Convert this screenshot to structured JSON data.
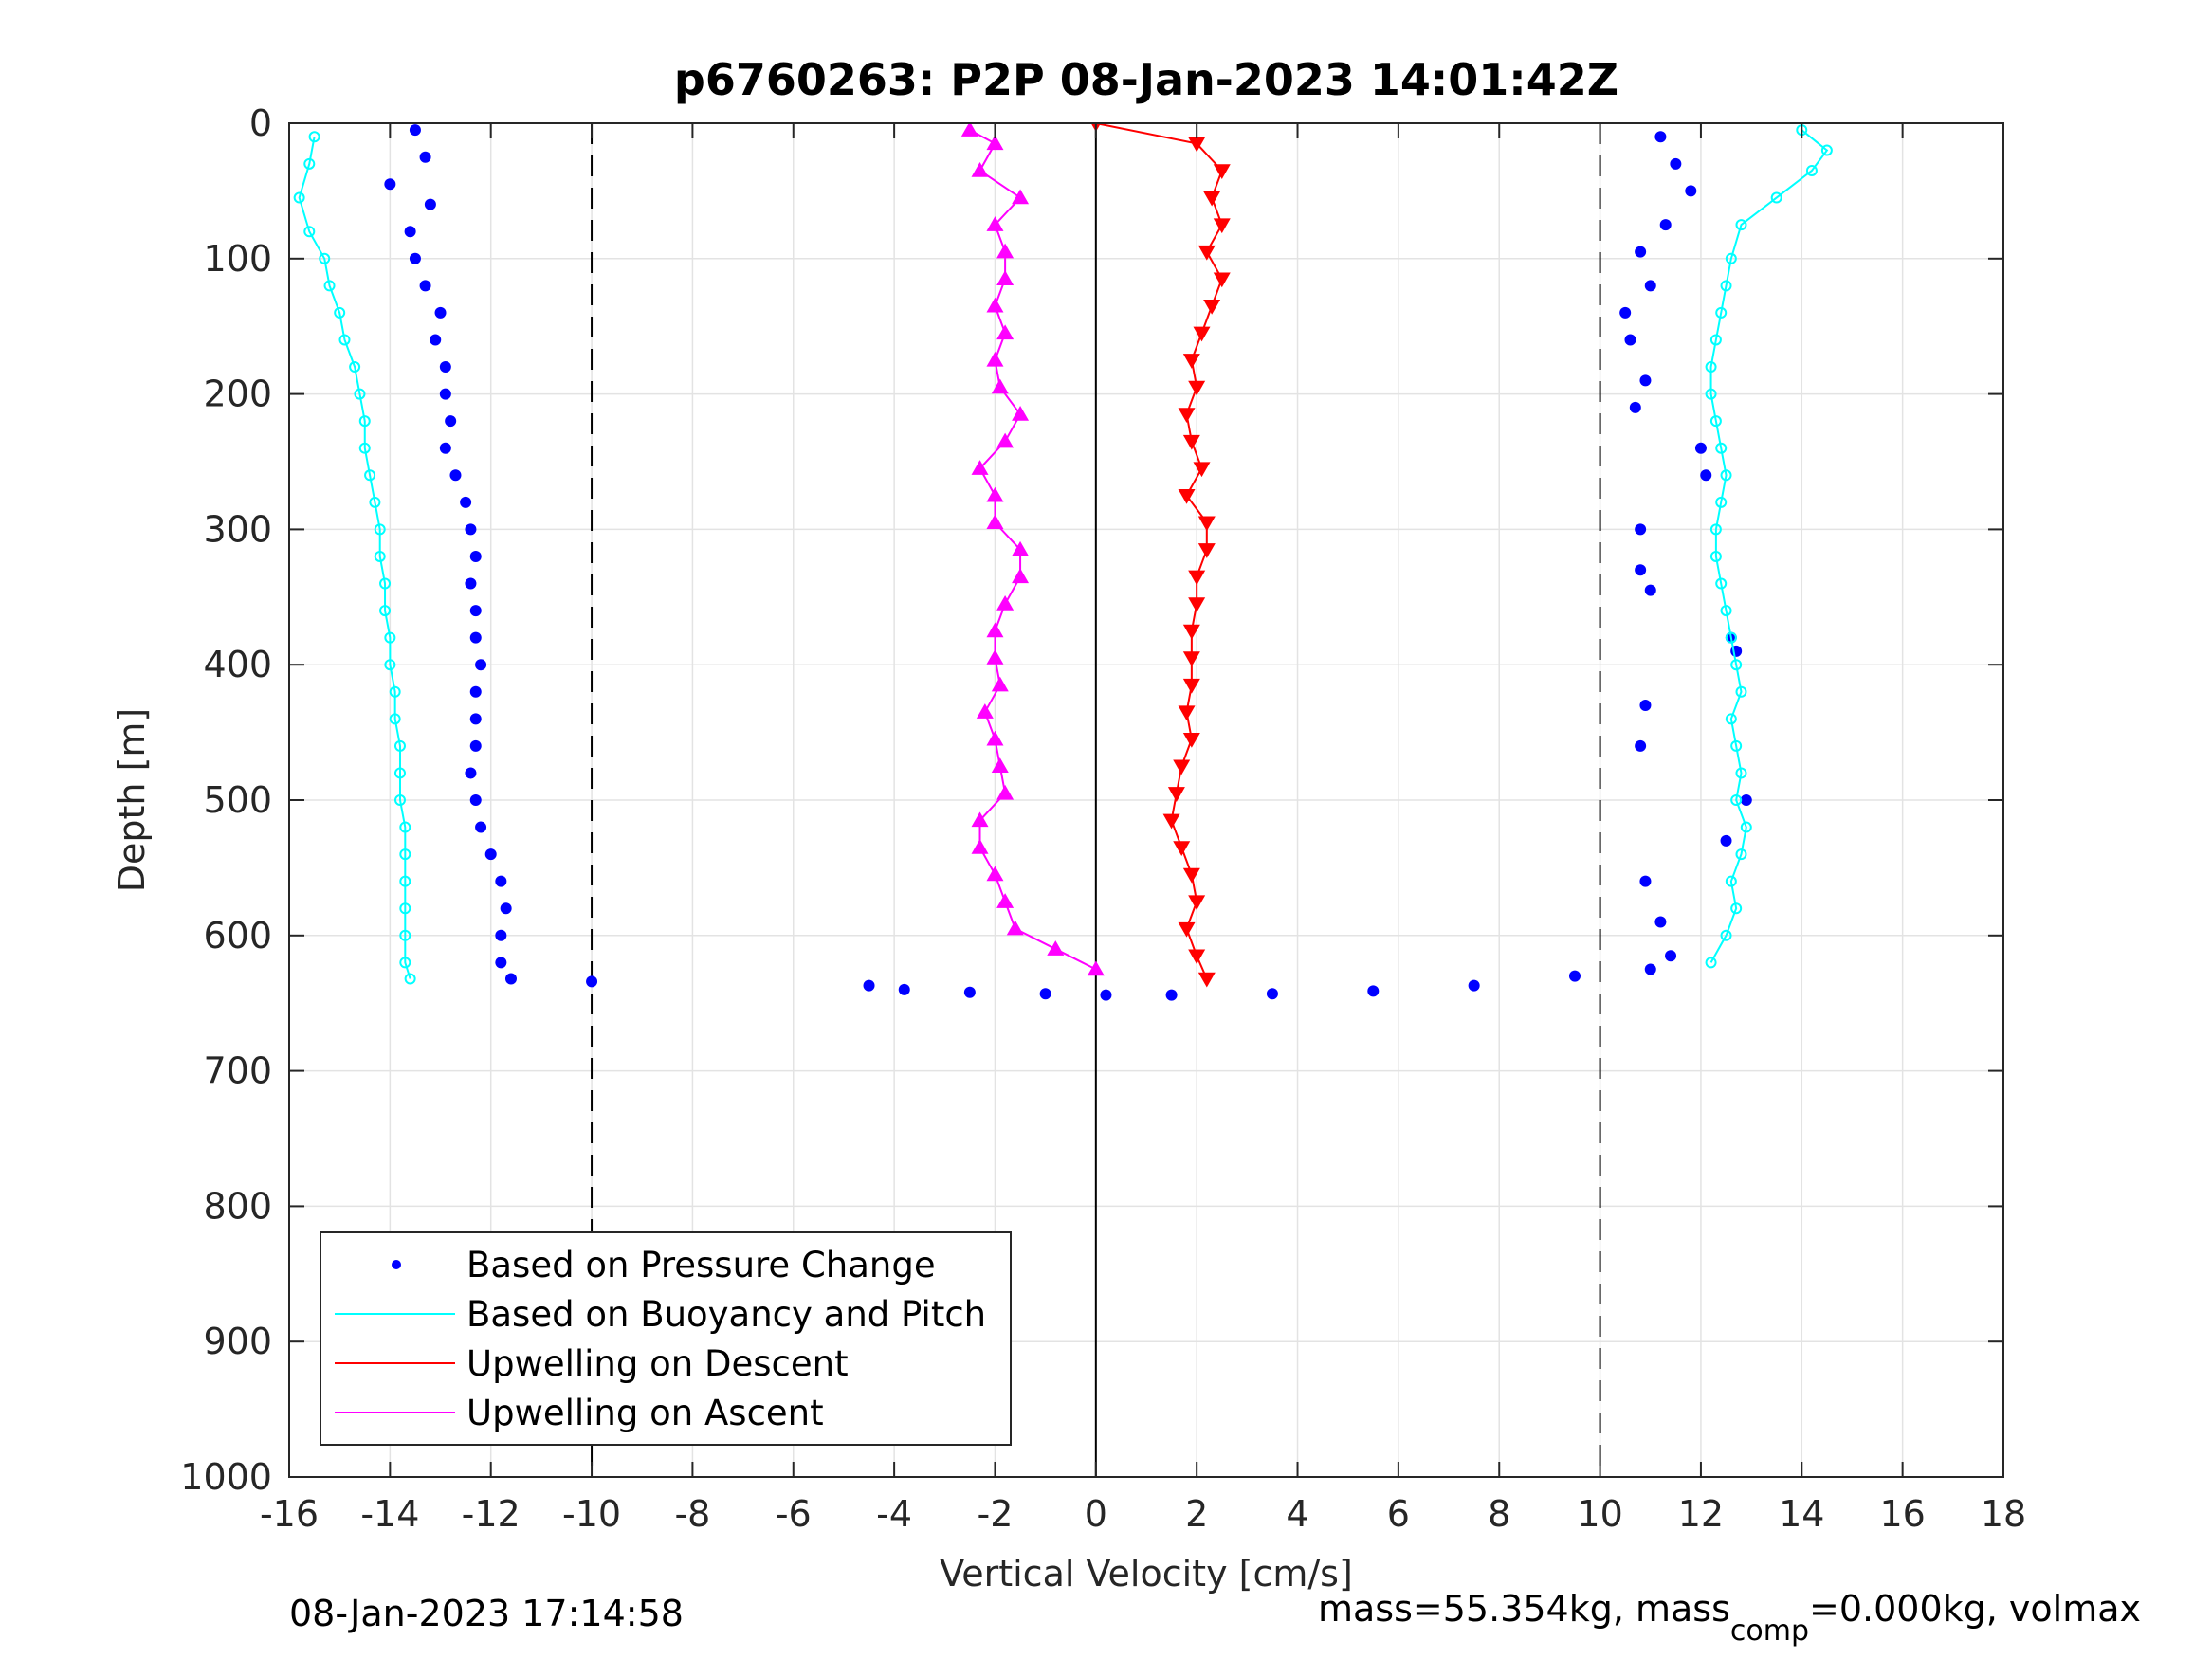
{
  "chart_data": {
    "type": "scatter",
    "title": "p6760263: P2P 08-Jan-2023 14:01:42Z",
    "xlabel": "Vertical Velocity [cm/s]",
    "ylabel": "Depth [m]",
    "xlim": [
      -16,
      18
    ],
    "ylim": [
      0,
      1000
    ],
    "y_reversed": true,
    "grid": true,
    "xticks": [
      "-16",
      "-14",
      "-12",
      "-10",
      "-8",
      "-6",
      "-4",
      "-2",
      "0",
      "2",
      "4",
      "6",
      "8",
      "10",
      "12",
      "14",
      "16",
      "18"
    ],
    "yticks": [
      "0",
      "100",
      "200",
      "300",
      "400",
      "500",
      "600",
      "700",
      "800",
      "900",
      "1000"
    ],
    "reference_lines": [
      {
        "x": -10,
        "style": "dashed"
      },
      {
        "x": 0,
        "style": "solid"
      },
      {
        "x": 10,
        "style": "dashed"
      }
    ],
    "legend_position": "bottom-left",
    "legend": [
      {
        "label": "Based on Pressure Change",
        "color": "#0000ff",
        "marker": "dot"
      },
      {
        "label": "Based on Buoyancy and Pitch",
        "color": "#00ffff",
        "marker": "line"
      },
      {
        "label": "Upwelling on Descent",
        "color": "#ff0000",
        "marker": "line"
      },
      {
        "label": "Upwelling on Ascent",
        "color": "#ff00ff",
        "marker": "line"
      }
    ],
    "series": [
      {
        "name": "Based on Pressure Change",
        "color": "#0000ff",
        "profile": "descent",
        "points": [
          [
            -13.5,
            5
          ],
          [
            -13.3,
            25
          ],
          [
            -14.0,
            45
          ],
          [
            -13.2,
            60
          ],
          [
            -13.6,
            80
          ],
          [
            -13.5,
            100
          ],
          [
            -13.3,
            120
          ],
          [
            -13.0,
            140
          ],
          [
            -13.1,
            160
          ],
          [
            -12.9,
            180
          ],
          [
            -12.9,
            200
          ],
          [
            -12.8,
            220
          ],
          [
            -12.9,
            240
          ],
          [
            -12.7,
            260
          ],
          [
            -12.5,
            280
          ],
          [
            -12.4,
            300
          ],
          [
            -12.3,
            320
          ],
          [
            -12.4,
            340
          ],
          [
            -12.3,
            360
          ],
          [
            -12.3,
            380
          ],
          [
            -12.2,
            400
          ],
          [
            -12.3,
            420
          ],
          [
            -12.3,
            440
          ],
          [
            -12.3,
            460
          ],
          [
            -12.4,
            480
          ],
          [
            -12.3,
            500
          ],
          [
            -12.2,
            520
          ],
          [
            -12.0,
            540
          ],
          [
            -11.8,
            560
          ],
          [
            -11.7,
            580
          ],
          [
            -11.8,
            600
          ],
          [
            -11.8,
            620
          ],
          [
            -11.6,
            632
          ]
        ]
      },
      {
        "name": "Based on Pressure Change",
        "color": "#0000ff",
        "profile": "ascent",
        "points": [
          [
            11.2,
            10
          ],
          [
            11.5,
            30
          ],
          [
            11.8,
            50
          ],
          [
            11.3,
            75
          ],
          [
            10.8,
            95
          ],
          [
            11.0,
            120
          ],
          [
            10.5,
            140
          ],
          [
            10.6,
            160
          ],
          [
            10.9,
            190
          ],
          [
            10.7,
            210
          ],
          [
            12.0,
            240
          ],
          [
            12.1,
            260
          ],
          [
            10.8,
            300
          ],
          [
            10.8,
            330
          ],
          [
            11.0,
            345
          ],
          [
            12.6,
            380
          ],
          [
            12.7,
            390
          ],
          [
            10.9,
            430
          ],
          [
            10.8,
            460
          ],
          [
            12.9,
            500
          ],
          [
            12.5,
            530
          ],
          [
            10.9,
            560
          ],
          [
            11.2,
            590
          ],
          [
            11.4,
            615
          ],
          [
            11.0,
            625
          ]
        ]
      },
      {
        "name": "Based on Pressure Change",
        "color": "#0000ff",
        "profile": "bottom",
        "points": [
          [
            9.5,
            630
          ],
          [
            7.5,
            637
          ],
          [
            5.5,
            641
          ],
          [
            3.5,
            643
          ],
          [
            1.5,
            644
          ],
          [
            0.2,
            644
          ],
          [
            -1.0,
            643
          ],
          [
            -2.5,
            642
          ],
          [
            -3.8,
            640
          ],
          [
            -4.5,
            637
          ],
          [
            -10.0,
            634
          ]
        ]
      },
      {
        "name": "Based on Buoyancy and Pitch",
        "color": "#00ffff",
        "profile": "descent",
        "points": [
          [
            -15.5,
            10
          ],
          [
            -15.6,
            30
          ],
          [
            -15.8,
            55
          ],
          [
            -15.6,
            80
          ],
          [
            -15.3,
            100
          ],
          [
            -15.2,
            120
          ],
          [
            -15.0,
            140
          ],
          [
            -14.9,
            160
          ],
          [
            -14.7,
            180
          ],
          [
            -14.6,
            200
          ],
          [
            -14.5,
            220
          ],
          [
            -14.5,
            240
          ],
          [
            -14.4,
            260
          ],
          [
            -14.3,
            280
          ],
          [
            -14.2,
            300
          ],
          [
            -14.2,
            320
          ],
          [
            -14.1,
            340
          ],
          [
            -14.1,
            360
          ],
          [
            -14.0,
            380
          ],
          [
            -14.0,
            400
          ],
          [
            -13.9,
            420
          ],
          [
            -13.9,
            440
          ],
          [
            -13.8,
            460
          ],
          [
            -13.8,
            480
          ],
          [
            -13.8,
            500
          ],
          [
            -13.7,
            520
          ],
          [
            -13.7,
            540
          ],
          [
            -13.7,
            560
          ],
          [
            -13.7,
            580
          ],
          [
            -13.7,
            600
          ],
          [
            -13.7,
            620
          ],
          [
            -13.6,
            632
          ]
        ]
      },
      {
        "name": "Based on Buoyancy and Pitch",
        "color": "#00ffff",
        "profile": "ascent",
        "points": [
          [
            14.0,
            5
          ],
          [
            14.5,
            20
          ],
          [
            14.2,
            35
          ],
          [
            13.5,
            55
          ],
          [
            12.8,
            75
          ],
          [
            12.6,
            100
          ],
          [
            12.5,
            120
          ],
          [
            12.4,
            140
          ],
          [
            12.3,
            160
          ],
          [
            12.2,
            180
          ],
          [
            12.2,
            200
          ],
          [
            12.3,
            220
          ],
          [
            12.4,
            240
          ],
          [
            12.5,
            260
          ],
          [
            12.4,
            280
          ],
          [
            12.3,
            300
          ],
          [
            12.3,
            320
          ],
          [
            12.4,
            340
          ],
          [
            12.5,
            360
          ],
          [
            12.6,
            380
          ],
          [
            12.7,
            400
          ],
          [
            12.8,
            420
          ],
          [
            12.6,
            440
          ],
          [
            12.7,
            460
          ],
          [
            12.8,
            480
          ],
          [
            12.7,
            500
          ],
          [
            12.9,
            520
          ],
          [
            12.8,
            540
          ],
          [
            12.6,
            560
          ],
          [
            12.7,
            580
          ],
          [
            12.5,
            600
          ],
          [
            12.2,
            620
          ]
        ]
      },
      {
        "name": "Upwelling on Descent",
        "color": "#ff0000",
        "points": [
          [
            0.0,
            0
          ],
          [
            2.0,
            15
          ],
          [
            2.5,
            35
          ],
          [
            2.3,
            55
          ],
          [
            2.5,
            75
          ],
          [
            2.2,
            95
          ],
          [
            2.5,
            115
          ],
          [
            2.3,
            135
          ],
          [
            2.1,
            155
          ],
          [
            1.9,
            175
          ],
          [
            2.0,
            195
          ],
          [
            1.8,
            215
          ],
          [
            1.9,
            235
          ],
          [
            2.1,
            255
          ],
          [
            1.8,
            275
          ],
          [
            2.2,
            295
          ],
          [
            2.2,
            315
          ],
          [
            2.0,
            335
          ],
          [
            2.0,
            355
          ],
          [
            1.9,
            375
          ],
          [
            1.9,
            395
          ],
          [
            1.9,
            415
          ],
          [
            1.8,
            435
          ],
          [
            1.9,
            455
          ],
          [
            1.7,
            475
          ],
          [
            1.6,
            495
          ],
          [
            1.5,
            515
          ],
          [
            1.7,
            535
          ],
          [
            1.9,
            555
          ],
          [
            2.0,
            575
          ],
          [
            1.8,
            595
          ],
          [
            2.0,
            615
          ],
          [
            2.2,
            632
          ]
        ]
      },
      {
        "name": "Upwelling on Ascent",
        "color": "#ff00ff",
        "points": [
          [
            -2.5,
            5
          ],
          [
            -2.0,
            15
          ],
          [
            -2.3,
            35
          ],
          [
            -1.5,
            55
          ],
          [
            -2.0,
            75
          ],
          [
            -1.8,
            95
          ],
          [
            -1.8,
            115
          ],
          [
            -2.0,
            135
          ],
          [
            -1.8,
            155
          ],
          [
            -2.0,
            175
          ],
          [
            -1.9,
            195
          ],
          [
            -1.5,
            215
          ],
          [
            -1.8,
            235
          ],
          [
            -2.3,
            255
          ],
          [
            -2.0,
            275
          ],
          [
            -2.0,
            295
          ],
          [
            -1.5,
            315
          ],
          [
            -1.5,
            335
          ],
          [
            -1.8,
            355
          ],
          [
            -2.0,
            375
          ],
          [
            -2.0,
            395
          ],
          [
            -1.9,
            415
          ],
          [
            -2.2,
            435
          ],
          [
            -2.0,
            455
          ],
          [
            -1.9,
            475
          ],
          [
            -1.8,
            495
          ],
          [
            -2.3,
            515
          ],
          [
            -2.3,
            535
          ],
          [
            -2.0,
            555
          ],
          [
            -1.8,
            575
          ],
          [
            -1.6,
            595
          ],
          [
            -0.8,
            610
          ],
          [
            0.0,
            625
          ]
        ]
      }
    ],
    "footer_left": "08-Jan-2023 17:14:58",
    "footer_right": "mass=55.354kg, mass",
    "footer_right_sub": "comp",
    "footer_right_tail": "=0.000kg, volmax"
  }
}
